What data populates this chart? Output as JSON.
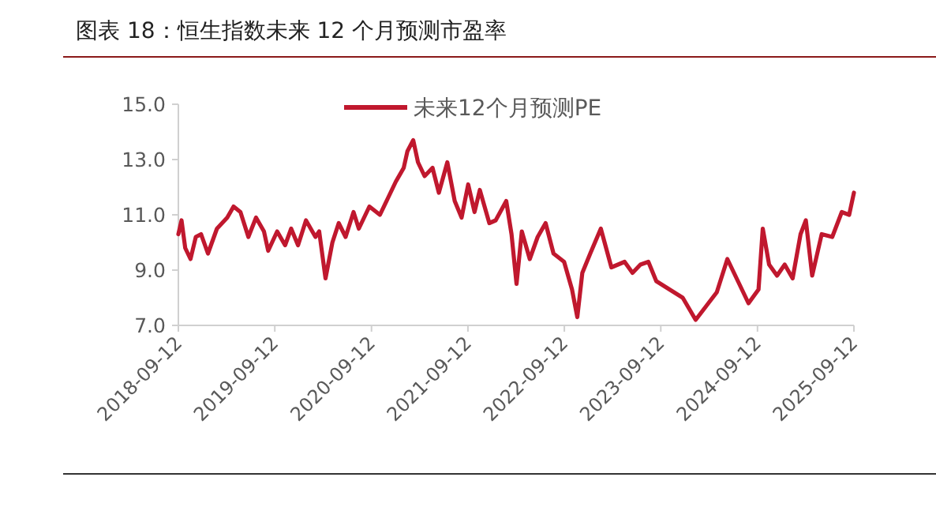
{
  "chart_data": {
    "type": "line",
    "title": "图表 18：恒生指数未来 12 个月预测市盈率",
    "x": [
      "2018-09-12",
      "2018-09-24",
      "2018-10-08",
      "2018-10-28",
      "2018-11-17",
      "2018-12-07",
      "2019-01-02",
      "2019-02-05",
      "2019-03-16",
      "2019-04-09",
      "2019-05-05",
      "2019-06-04",
      "2019-07-03",
      "2019-08-02",
      "2019-08-18",
      "2019-09-21",
      "2019-10-21",
      "2019-11-13",
      "2019-12-09",
      "2020-01-08",
      "2020-02-13",
      "2020-02-27",
      "2020-03-22",
      "2020-04-17",
      "2020-05-11",
      "2020-06-06",
      "2020-07-06",
      "2020-07-26",
      "2020-09-04",
      "2020-10-14",
      "2020-11-13",
      "2020-12-13",
      "2021-01-12",
      "2021-01-26",
      "2021-02-17",
      "2021-03-07",
      "2021-04-01",
      "2021-05-01",
      "2021-05-25",
      "2021-06-26",
      "2021-07-24",
      "2021-08-19",
      "2021-09-13",
      "2021-10-07",
      "2021-10-27",
      "2021-12-02",
      "2021-12-26",
      "2022-02-04",
      "2022-02-24",
      "2022-03-15",
      "2022-04-04",
      "2022-05-04",
      "2022-06-03",
      "2022-07-03",
      "2022-08-02",
      "2022-09-11",
      "2022-10-11",
      "2022-10-31",
      "2022-11-19",
      "2022-12-19",
      "2023-01-28",
      "2023-03-09",
      "2023-04-28",
      "2023-05-28",
      "2023-06-27",
      "2023-07-27",
      "2023-08-26",
      "2023-10-15",
      "2023-12-04",
      "2024-01-22",
      "2024-03-02",
      "2024-04-11",
      "2024-05-21",
      "2024-06-30",
      "2024-08-09",
      "2024-09-16",
      "2024-10-02",
      "2024-10-26",
      "2024-11-25",
      "2024-12-24",
      "2025-01-23",
      "2025-02-22",
      "2025-03-14",
      "2025-04-07",
      "2025-05-13",
      "2025-06-22",
      "2025-07-28",
      "2025-08-25",
      "2025-09-12"
    ],
    "series": [
      {
        "name": "未来12个月预测PE",
        "color": "#c0182e",
        "values": [
          10.3,
          10.8,
          9.8,
          9.4,
          10.2,
          10.3,
          9.6,
          10.5,
          10.9,
          11.3,
          11.1,
          10.2,
          10.9,
          10.4,
          9.7,
          10.4,
          9.9,
          10.5,
          9.9,
          10.8,
          10.2,
          10.4,
          8.7,
          10.0,
          10.7,
          10.2,
          11.1,
          10.5,
          11.3,
          11.0,
          11.6,
          12.2,
          12.7,
          13.3,
          13.7,
          12.9,
          12.4,
          12.7,
          11.8,
          12.9,
          11.5,
          10.9,
          12.1,
          11.1,
          11.9,
          10.7,
          10.8,
          11.5,
          10.3,
          8.5,
          10.4,
          9.4,
          10.2,
          10.7,
          9.6,
          9.3,
          8.3,
          7.3,
          8.9,
          9.6,
          10.5,
          9.1,
          9.3,
          8.9,
          9.2,
          9.3,
          8.6,
          8.3,
          8.0,
          7.2,
          7.7,
          8.2,
          9.4,
          8.6,
          7.8,
          8.3,
          10.5,
          9.2,
          8.8,
          9.2,
          8.7,
          10.3,
          10.8,
          8.8,
          10.3,
          10.2,
          11.1,
          11.0,
          11.8
        ]
      }
    ],
    "xlim": [
      "2018-09-12",
      "2025-09-12"
    ],
    "xticks": [
      "2018-09-12",
      "2019-09-12",
      "2020-09-12",
      "2021-09-12",
      "2022-09-12",
      "2023-09-12",
      "2024-09-12",
      "2025-09-12"
    ],
    "ylim": [
      7,
      15
    ],
    "yticks": [
      {
        "value": 7,
        "label": "7.0"
      },
      {
        "value": 9,
        "label": "9.0"
      },
      {
        "value": 11,
        "label": "11.0"
      },
      {
        "value": 13,
        "label": "13.0"
      },
      {
        "value": 15,
        "label": "15.0"
      }
    ],
    "grid": false,
    "legend": "top",
    "marker": "none",
    "line_style": "solid"
  }
}
